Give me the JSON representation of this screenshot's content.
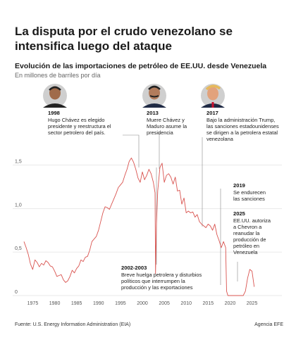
{
  "header": {
    "title": "La disputa por el crudo venezolano se intensifica luego del ataque",
    "subtitle": "Evolución de las importaciones de petróleo de EE.UU. desde Venezuela",
    "unit": "En millones de barriles por día"
  },
  "footer": {
    "source": "Fuente: U.S. Energy Information Administration (EIA)",
    "credit": "Agencia EFE"
  },
  "colors": {
    "line": "#d9534f",
    "connector": "#888888",
    "grid": "#d6d6d6"
  },
  "annotations": [
    {
      "year": "1998",
      "lines": [
        "Hugo Chávez es elegido",
        "presidente y reestructura el",
        "sector petrolero del país."
      ],
      "portrait": "portrait-chavez-icon"
    },
    {
      "year": "2013",
      "lines": [
        "Muere Chávez y",
        "Maduro asume la",
        "presidencia"
      ],
      "portrait": "portrait-maduro-icon"
    },
    {
      "year": "2017",
      "lines": [
        "Bajo la administración Trump,",
        "las sanciones estadounidenses",
        "se dirigen a la petrolera estatal",
        "venezolana"
      ],
      "portrait": "portrait-trump-icon"
    },
    {
      "year": "2019",
      "lines": [
        "Se endurecen",
        "las sanciones"
      ]
    },
    {
      "year": "2025",
      "lines": [
        "EE.UU. autoriza",
        "a Chevron a",
        "reanudar la",
        "producción de",
        "petróleo en",
        "Venezuela"
      ]
    },
    {
      "year": "2002-2003",
      "lines": [
        "Breve huelga petrolera y disturbios",
        "políticos que interrumpen la",
        "producción y las exportaciones"
      ]
    }
  ],
  "chart_data": {
    "type": "line",
    "ylim": [
      0,
      1.6
    ],
    "xlim": [
      1973,
      2027
    ],
    "yticks": [
      0,
      0.5,
      1.0,
      1.5
    ],
    "ytick_labels": [
      "0",
      "0,5",
      "1,0",
      "1,5"
    ],
    "xticks": [
      1975,
      1980,
      1985,
      1990,
      1995,
      2000,
      2005,
      2010,
      2015,
      2020,
      2025
    ],
    "grid": true,
    "series": [
      {
        "x": [
          1973.0,
          1973.5,
          1974.0,
          1974.5,
          1975.0,
          1975.5,
          1976.0,
          1976.5,
          1977.0,
          1977.5,
          1978.0,
          1978.5,
          1979.0,
          1979.5,
          1980.0,
          1980.5,
          1981.0,
          1981.5,
          1982.0,
          1982.5,
          1983.0,
          1983.5,
          1984.0,
          1984.5,
          1985.0,
          1985.5,
          1986.0,
          1986.5,
          1987.0,
          1987.5,
          1988.0,
          1988.5,
          1989.0,
          1989.5,
          1990.0,
          1990.5,
          1991.0,
          1991.5,
          1992.0,
          1992.5,
          1993.0,
          1993.5,
          1994.0,
          1994.5,
          1995.0,
          1995.5,
          1996.0,
          1996.5,
          1997.0,
          1997.5,
          1998.0,
          1998.5,
          1999.0,
          1999.5,
          2000.0,
          2000.5,
          2001.0,
          2001.5,
          2002.0,
          2002.5,
          2002.9,
          2003.0,
          2003.2,
          2003.5,
          2004.0,
          2004.5,
          2005.0,
          2005.5,
          2006.0,
          2006.5,
          2007.0,
          2007.5,
          2008.0,
          2008.5,
          2009.0,
          2009.5,
          2010.0,
          2010.5,
          2011.0,
          2011.5,
          2012.0,
          2012.5,
          2013.0,
          2013.5,
          2014.0,
          2014.5,
          2015.0,
          2015.5,
          2016.0,
          2016.5,
          2017.0,
          2017.5,
          2018.0,
          2018.5,
          2019.0,
          2019.2,
          2019.5,
          2020.0,
          2020.5,
          2021.0,
          2021.5,
          2022.0,
          2022.5,
          2023.0,
          2023.5,
          2024.0,
          2024.5,
          2025.0,
          2025.5
        ],
        "y": [
          0.62,
          0.55,
          0.47,
          0.36,
          0.3,
          0.41,
          0.38,
          0.33,
          0.37,
          0.35,
          0.4,
          0.38,
          0.34,
          0.33,
          0.28,
          0.22,
          0.23,
          0.24,
          0.18,
          0.15,
          0.17,
          0.22,
          0.29,
          0.26,
          0.31,
          0.34,
          0.41,
          0.39,
          0.44,
          0.45,
          0.52,
          0.62,
          0.65,
          0.68,
          0.75,
          0.85,
          0.95,
          1.02,
          1.01,
          0.99,
          1.05,
          1.11,
          1.17,
          1.24,
          1.27,
          1.3,
          1.38,
          1.45,
          1.54,
          1.58,
          1.53,
          1.45,
          1.35,
          1.3,
          1.42,
          1.33,
          1.38,
          1.45,
          1.4,
          1.3,
          1.18,
          0.25,
          0.8,
          1.2,
          1.47,
          1.52,
          1.3,
          1.38,
          1.4,
          1.36,
          1.28,
          1.36,
          1.2,
          1.21,
          1.05,
          1.12,
          0.95,
          0.97,
          0.95,
          0.96,
          0.9,
          0.93,
          0.85,
          0.82,
          0.8,
          0.78,
          0.82,
          0.8,
          0.75,
          0.82,
          0.7,
          0.63,
          0.55,
          0.62,
          0.55,
          0.05,
          0.0,
          0.0,
          0.0,
          0.0,
          0.0,
          0.0,
          0.0,
          0.0,
          0.05,
          0.2,
          0.3,
          0.28,
          0.1
        ]
      }
    ]
  }
}
